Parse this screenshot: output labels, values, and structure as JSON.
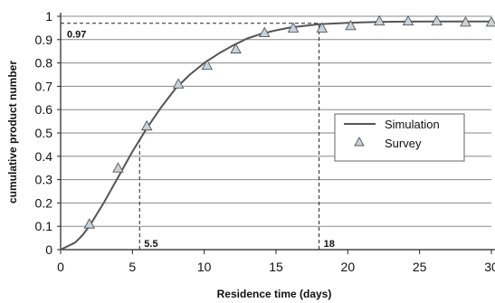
{
  "chart_data": {
    "type": "line",
    "title": "",
    "xlabel": "Residence time (days)",
    "ylabel": "cumulative product number",
    "xlim": [
      0,
      30
    ],
    "ylim": [
      0,
      1
    ],
    "x_ticks": [
      "0",
      "5",
      "10",
      "15",
      "20",
      "25",
      "30"
    ],
    "y_ticks": [
      "0",
      "0.1",
      "0.2",
      "0.3",
      "0.4",
      "0.5",
      "0.6",
      "0.7",
      "0.8",
      "0.9",
      "1"
    ],
    "grid": "horizontal",
    "legend_position": "right",
    "series": [
      {
        "name": "Simulation",
        "style": "line",
        "color": "#555555",
        "x": [
          0,
          1,
          1.5,
          2,
          3,
          4,
          5,
          5.5,
          6,
          7,
          8,
          9,
          10,
          11,
          12,
          13,
          14,
          15,
          16,
          18,
          20,
          22,
          24,
          26,
          28,
          30
        ],
        "y": [
          0,
          0.03,
          0.06,
          0.1,
          0.2,
          0.31,
          0.42,
          0.47,
          0.52,
          0.61,
          0.69,
          0.75,
          0.8,
          0.84,
          0.875,
          0.905,
          0.925,
          0.94,
          0.952,
          0.966,
          0.972,
          0.976,
          0.977,
          0.978,
          0.978,
          0.978
        ]
      },
      {
        "name": "Survey",
        "style": "marker-triangle",
        "color": "#c7d3dc",
        "x": [
          2,
          4,
          6,
          8.2,
          10.2,
          12.2,
          14.2,
          16.2,
          18.2,
          20.2,
          22.2,
          24.2,
          26.2,
          28.2,
          30
        ],
        "y": [
          0.11,
          0.35,
          0.53,
          0.71,
          0.79,
          0.86,
          0.93,
          0.95,
          0.95,
          0.96,
          0.98,
          0.98,
          0.98,
          0.975,
          0.975
        ]
      }
    ],
    "annotations": [
      {
        "label": "0.97",
        "kind": "horizontal-dashed",
        "x_from": 0,
        "x_to": 18,
        "y": 0.97
      },
      {
        "label": "5.5",
        "kind": "vertical-dashed",
        "x": 5.5,
        "y_from": 0,
        "y_to": 0.47
      },
      {
        "label": "18",
        "kind": "vertical-dashed",
        "x": 18,
        "y_from": 0,
        "y_to": 0.97
      }
    ]
  }
}
